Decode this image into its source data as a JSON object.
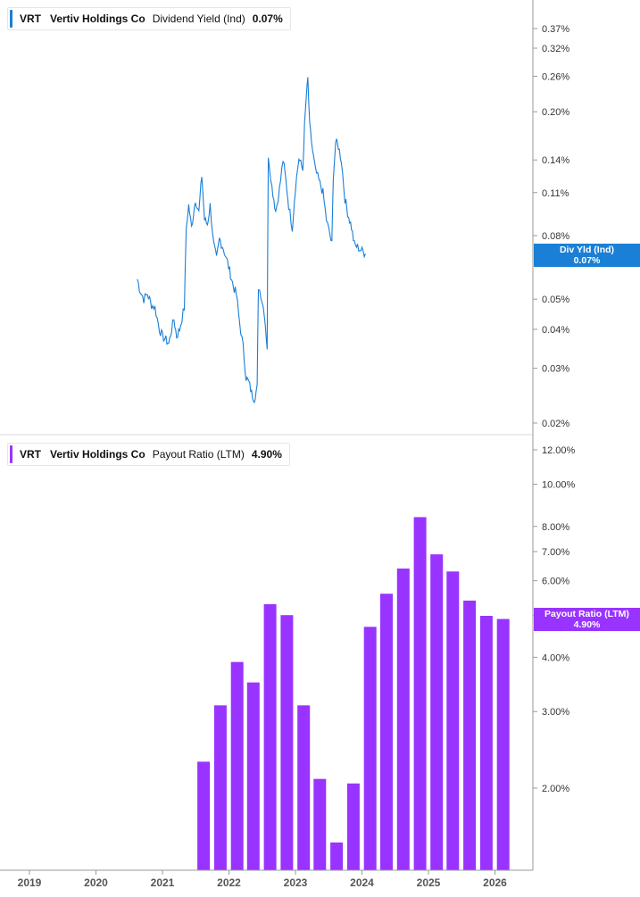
{
  "colors": {
    "yield_line": "#1a7fd6",
    "payout_bar": "#9933ff",
    "axis": "#999999",
    "tick_text": "#333333"
  },
  "panels": {
    "top": {
      "legend": {
        "ticker": "VRT",
        "name": "Vertiv Holdings Co",
        "metric": "Dividend Yield (Ind)",
        "value": "0.07%"
      },
      "flag": {
        "label": "Div Yld (Ind)",
        "value": "0.07%"
      }
    },
    "bottom": {
      "legend": {
        "ticker": "VRT",
        "name": "Vertiv Holdings Co",
        "metric": "Payout Ratio (LTM)",
        "value": "4.90%"
      },
      "flag": {
        "label": "Payout Ratio (LTM)",
        "value": "4.90%"
      }
    }
  },
  "chart_data": [
    {
      "type": "line",
      "title": "Dividend Yield (Ind)",
      "y_scale": "log",
      "ylim": [
        0.019,
        0.45
      ],
      "y_ticks": [
        "0.37%",
        "0.32%",
        "0.26%",
        "0.20%",
        "0.14%",
        "0.11%",
        "0.08%",
        "0.05%",
        "0.04%",
        "0.03%",
        "0.02%"
      ],
      "series": [
        {
          "name": "Dividend Yield (Ind)",
          "points": [
            [
              "2020-08-15",
              0.058
            ],
            [
              "2020-09-01",
              0.053
            ],
            [
              "2020-09-20",
              0.05
            ],
            [
              "2020-10-10",
              0.052
            ],
            [
              "2020-11-01",
              0.048
            ],
            [
              "2020-11-20",
              0.047
            ],
            [
              "2020-12-15",
              0.04
            ],
            [
              "2021-01-01",
              0.038
            ],
            [
              "2021-01-20",
              0.037
            ],
            [
              "2021-02-05",
              0.036
            ],
            [
              "2021-02-20",
              0.04
            ],
            [
              "2021-03-05",
              0.043
            ],
            [
              "2021-03-20",
              0.038
            ],
            [
              "2021-04-05",
              0.04
            ],
            [
              "2021-05-01",
              0.047
            ],
            [
              "2021-05-12",
              0.085
            ],
            [
              "2021-05-25",
              0.1
            ],
            [
              "2021-06-10",
              0.085
            ],
            [
              "2021-07-01",
              0.105
            ],
            [
              "2021-07-20",
              0.095
            ],
            [
              "2021-08-05",
              0.125
            ],
            [
              "2021-08-20",
              0.09
            ],
            [
              "2021-09-05",
              0.087
            ],
            [
              "2021-09-20",
              0.1
            ],
            [
              "2021-10-10",
              0.075
            ],
            [
              "2021-10-25",
              0.067
            ],
            [
              "2021-11-10",
              0.078
            ],
            [
              "2021-12-01",
              0.073
            ],
            [
              "2021-12-20",
              0.067
            ],
            [
              "2022-01-10",
              0.06
            ],
            [
              "2022-01-25",
              0.055
            ],
            [
              "2022-02-10",
              0.052
            ],
            [
              "2022-03-01",
              0.042
            ],
            [
              "2022-03-20",
              0.035
            ],
            [
              "2022-04-05",
              0.028
            ],
            [
              "2022-04-20",
              0.027
            ],
            [
              "2022-05-05",
              0.025
            ],
            [
              "2022-05-20",
              0.024
            ],
            [
              "2022-06-05",
              0.026
            ],
            [
              "2022-06-12",
              0.055
            ],
            [
              "2022-06-25",
              0.052
            ],
            [
              "2022-07-15",
              0.045
            ],
            [
              "2022-07-30",
              0.035
            ],
            [
              "2022-08-05",
              0.146
            ],
            [
              "2022-08-25",
              0.115
            ],
            [
              "2022-09-15",
              0.096
            ],
            [
              "2022-10-05",
              0.112
            ],
            [
              "2022-10-25",
              0.14
            ],
            [
              "2022-11-10",
              0.12
            ],
            [
              "2022-11-25",
              0.1
            ],
            [
              "2022-12-15",
              0.085
            ],
            [
              "2023-01-01",
              0.115
            ],
            [
              "2023-01-20",
              0.142
            ],
            [
              "2023-02-10",
              0.13
            ],
            [
              "2023-02-20",
              0.18
            ],
            [
              "2023-03-01",
              0.22
            ],
            [
              "2023-03-10",
              0.255
            ],
            [
              "2023-03-20",
              0.18
            ],
            [
              "2023-04-05",
              0.15
            ],
            [
              "2023-04-20",
              0.13
            ],
            [
              "2023-05-10",
              0.12
            ],
            [
              "2023-06-01",
              0.11
            ],
            [
              "2023-06-20",
              0.09
            ],
            [
              "2023-07-10",
              0.08
            ],
            [
              "2023-07-20",
              0.075
            ],
            [
              "2023-07-28",
              0.125
            ],
            [
              "2023-08-10",
              0.16
            ],
            [
              "2023-08-25",
              0.155
            ],
            [
              "2023-09-10",
              0.14
            ],
            [
              "2023-09-30",
              0.105
            ],
            [
              "2023-10-15",
              0.095
            ],
            [
              "2023-11-05",
              0.085
            ],
            [
              "2023-11-20",
              0.075
            ],
            [
              "2024-01-20",
              0.07
            ]
          ]
        }
      ]
    },
    {
      "type": "bar",
      "title": "Payout Ratio (LTM)",
      "y_scale": "log",
      "ylim": [
        1.4,
        12.5
      ],
      "y_ticks": [
        "12.00%",
        "10.00%",
        "8.00%",
        "7.00%",
        "6.00%",
        "5.00%",
        "4.00%",
        "3.00%",
        "2.00%"
      ],
      "x_tick_labels": [
        "2019",
        "2020",
        "2021",
        "2022",
        "2023",
        "2024",
        "2025",
        "2026"
      ],
      "series": [
        {
          "name": "Payout Ratio (LTM)",
          "points": [
            [
              "2021-08-15",
              2.3
            ],
            [
              "2021-11-15",
              3.1
            ],
            [
              "2022-02-15",
              3.9
            ],
            [
              "2022-05-15",
              3.5
            ],
            [
              "2022-08-15",
              5.3
            ],
            [
              "2022-11-15",
              5.0
            ],
            [
              "2023-02-15",
              3.1
            ],
            [
              "2023-05-15",
              2.1
            ],
            [
              "2023-08-15",
              1.5
            ],
            [
              "2023-11-15",
              2.05
            ],
            [
              "2024-02-15",
              4.7
            ],
            [
              "2024-05-15",
              5.6
            ],
            [
              "2024-08-15",
              6.4
            ],
            [
              "2024-11-15",
              8.4
            ],
            [
              "2025-02-15",
              6.9
            ],
            [
              "2025-05-15",
              6.3
            ],
            [
              "2025-08-15",
              5.4
            ],
            [
              "2025-11-15",
              4.98
            ],
            [
              "2026-02-15",
              4.9
            ]
          ]
        }
      ]
    }
  ]
}
